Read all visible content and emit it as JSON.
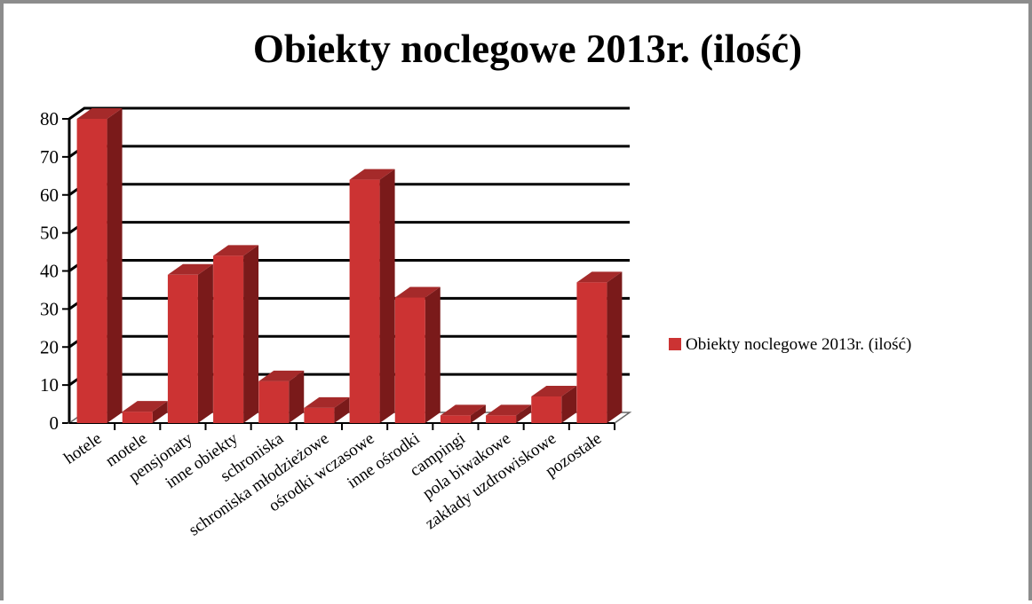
{
  "chart_data": {
    "type": "bar",
    "title": "Obiekty noclegowe 2013r. (ilość)",
    "categories": [
      "hotele",
      "motele",
      "pensjonaty",
      "inne obiekty",
      "schroniska",
      "schroniska młodzieżowe",
      "ośrodki wczasowe",
      "inne ośrodki",
      "campingi",
      "pola biwakowe",
      "zakłady uzdrowiskowe",
      "pozostałe"
    ],
    "series": [
      {
        "name": "Obiekty noclegowe 2013r. (ilość)",
        "values": [
          80,
          3,
          39,
          44,
          11,
          4,
          64,
          33,
          2,
          2,
          7,
          37
        ]
      }
    ],
    "ylim": [
      0,
      80
    ],
    "yticks": [
      "0",
      "10",
      "20",
      "30",
      "40",
      "50",
      "60",
      "70",
      "80"
    ],
    "xlabel": "",
    "ylabel": "",
    "grid": true,
    "style": "3d",
    "legend_position": "right",
    "colors": {
      "bar_front": "#cc3333",
      "bar_side": "#7a1a1a",
      "bar_top": "#a52a2a",
      "grid": "#000000",
      "axis": "#000000"
    }
  }
}
